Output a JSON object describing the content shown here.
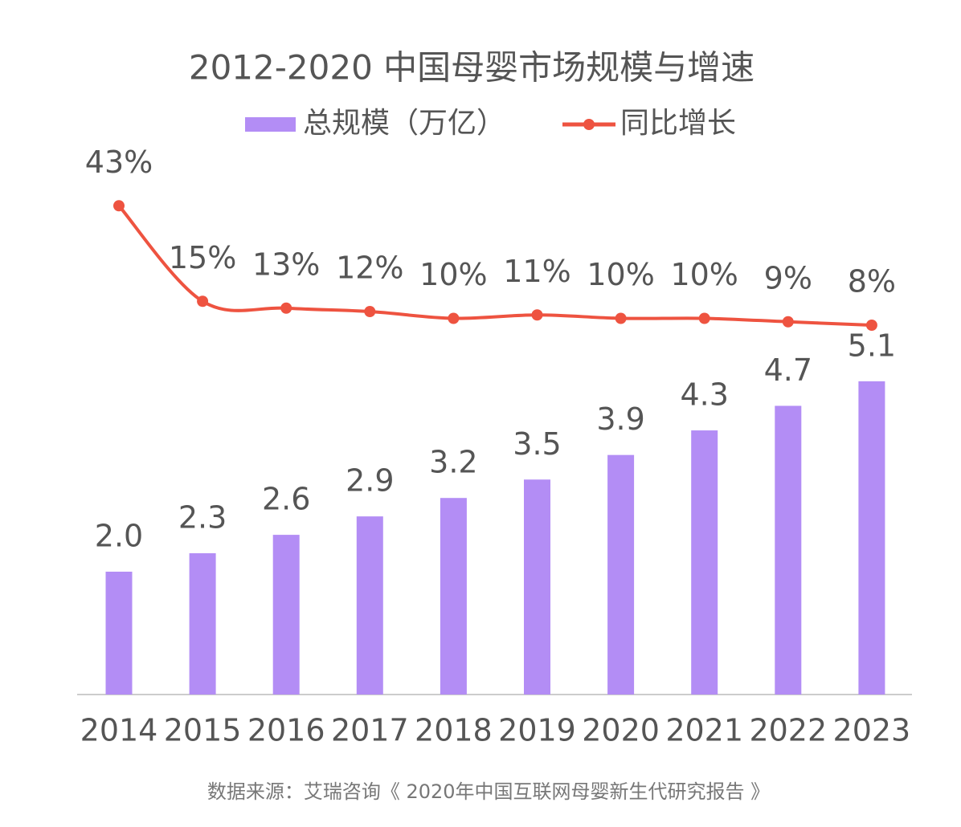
{
  "chart_data": {
    "type": "bar",
    "title": "2012-2020 中国母婴市场规模与增速",
    "source": "数据来源：艾瑞咨询《 2020年中国互联网母婴新生代研究报告 》",
    "categories": [
      "2014",
      "2015",
      "2016",
      "2017",
      "2018",
      "2019",
      "2020",
      "2021",
      "2022",
      "2023"
    ],
    "series": [
      {
        "name": "总规模（万亿）",
        "type": "bar",
        "color": "#b38df5",
        "values": [
          2.0,
          2.3,
          2.6,
          2.9,
          3.2,
          3.5,
          3.9,
          4.3,
          4.7,
          5.1
        ],
        "value_labels": [
          "2.0",
          "2.3",
          "2.6",
          "2.9",
          "3.2",
          "3.5",
          "3.9",
          "4.3",
          "4.7",
          "5.1"
        ]
      },
      {
        "name": "同比增长",
        "type": "line",
        "axis": "y2",
        "color": "#ee5340",
        "values": [
          43,
          15,
          13,
          12,
          10,
          11,
          10,
          10,
          9,
          8
        ],
        "value_labels": [
          "43%",
          "15%",
          "13%",
          "12%",
          "10%",
          "11%",
          "10%",
          "10%",
          "9%",
          "8%"
        ]
      }
    ]
  }
}
